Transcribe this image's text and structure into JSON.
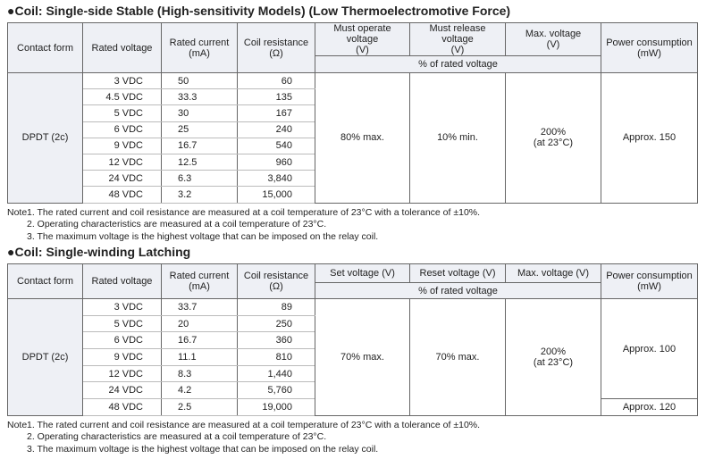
{
  "sections": [
    {
      "title": "●Coil: Single-side Stable (High-sensitivity Models) (Low Thermoelectromotive Force)",
      "headers": [
        [
          "Contact form"
        ],
        [
          "Rated voltage"
        ],
        [
          "Rated current",
          "(mA)"
        ],
        [
          "Coil resistance",
          "(Ω)"
        ],
        [
          "Must operate voltage",
          "(V)"
        ],
        [
          "Must release voltage",
          "(V)"
        ],
        [
          "Max. voltage",
          "(V)"
        ],
        [
          "Power consumption",
          "(mW)"
        ]
      ],
      "subheader": "% of rated voltage",
      "contact_form": "DPDT (2c)",
      "rows": [
        [
          "3 VDC",
          "50",
          "60"
        ],
        [
          "4.5 VDC",
          "33.3",
          "135"
        ],
        [
          "5 VDC",
          "30",
          "167"
        ],
        [
          "6 VDC",
          "25",
          "240"
        ],
        [
          "9 VDC",
          "16.7",
          "540"
        ],
        [
          "12 VDC",
          "12.5",
          "960"
        ],
        [
          "24 VDC",
          "6.3",
          "3,840"
        ],
        [
          "48 VDC",
          "3.2",
          "15,000"
        ]
      ],
      "shared": [
        [
          "80% max."
        ],
        [
          "10% min."
        ],
        [
          "200%",
          "(at 23°C)"
        ]
      ],
      "power": [
        "Approx. 150"
      ],
      "note_label": "Note",
      "notes": [
        "1. The rated current and coil resistance are measured at a coil temperature of 23°C with a tolerance of ±10%.",
        "2. Operating characteristics are measured at a coil temperature of 23°C.",
        "3. The maximum voltage is the highest voltage that can be imposed on the relay coil."
      ]
    },
    {
      "title": "●Coil: Single-winding Latching",
      "headers": [
        [
          "Contact form"
        ],
        [
          "Rated voltage"
        ],
        [
          "Rated current",
          "(mA)"
        ],
        [
          "Coil resistance",
          "(Ω)"
        ],
        [
          "Set voltage (V)"
        ],
        [
          "Reset voltage (V)"
        ],
        [
          "Max. voltage (V)"
        ],
        [
          "Power consumption",
          "(mW)"
        ]
      ],
      "subheader": "% of rated voltage",
      "contact_form": "DPDT (2c)",
      "rows": [
        [
          "3 VDC",
          "33.7",
          "89"
        ],
        [
          "5 VDC",
          "20",
          "250"
        ],
        [
          "6 VDC",
          "16.7",
          "360"
        ],
        [
          "9 VDC",
          "11.1",
          "810"
        ],
        [
          "12 VDC",
          "8.3",
          "1,440"
        ],
        [
          "24 VDC",
          "4.2",
          "5,760"
        ],
        [
          "48 VDC",
          "2.5",
          "19,000"
        ]
      ],
      "shared": [
        [
          "70% max."
        ],
        [
          "70% max."
        ],
        [
          "200%",
          "(at 23°C)"
        ]
      ],
      "power": [
        "Approx. 100",
        "Approx. 120"
      ],
      "note_label": "Note",
      "notes": [
        "1. The rated current and coil resistance are measured at a coil temperature of 23°C with a tolerance of ±10%.",
        "2. Operating characteristics are measured at a coil temperature of 23°C.",
        "3. The maximum voltage is the highest voltage that can be imposed on the relay coil."
      ]
    }
  ]
}
